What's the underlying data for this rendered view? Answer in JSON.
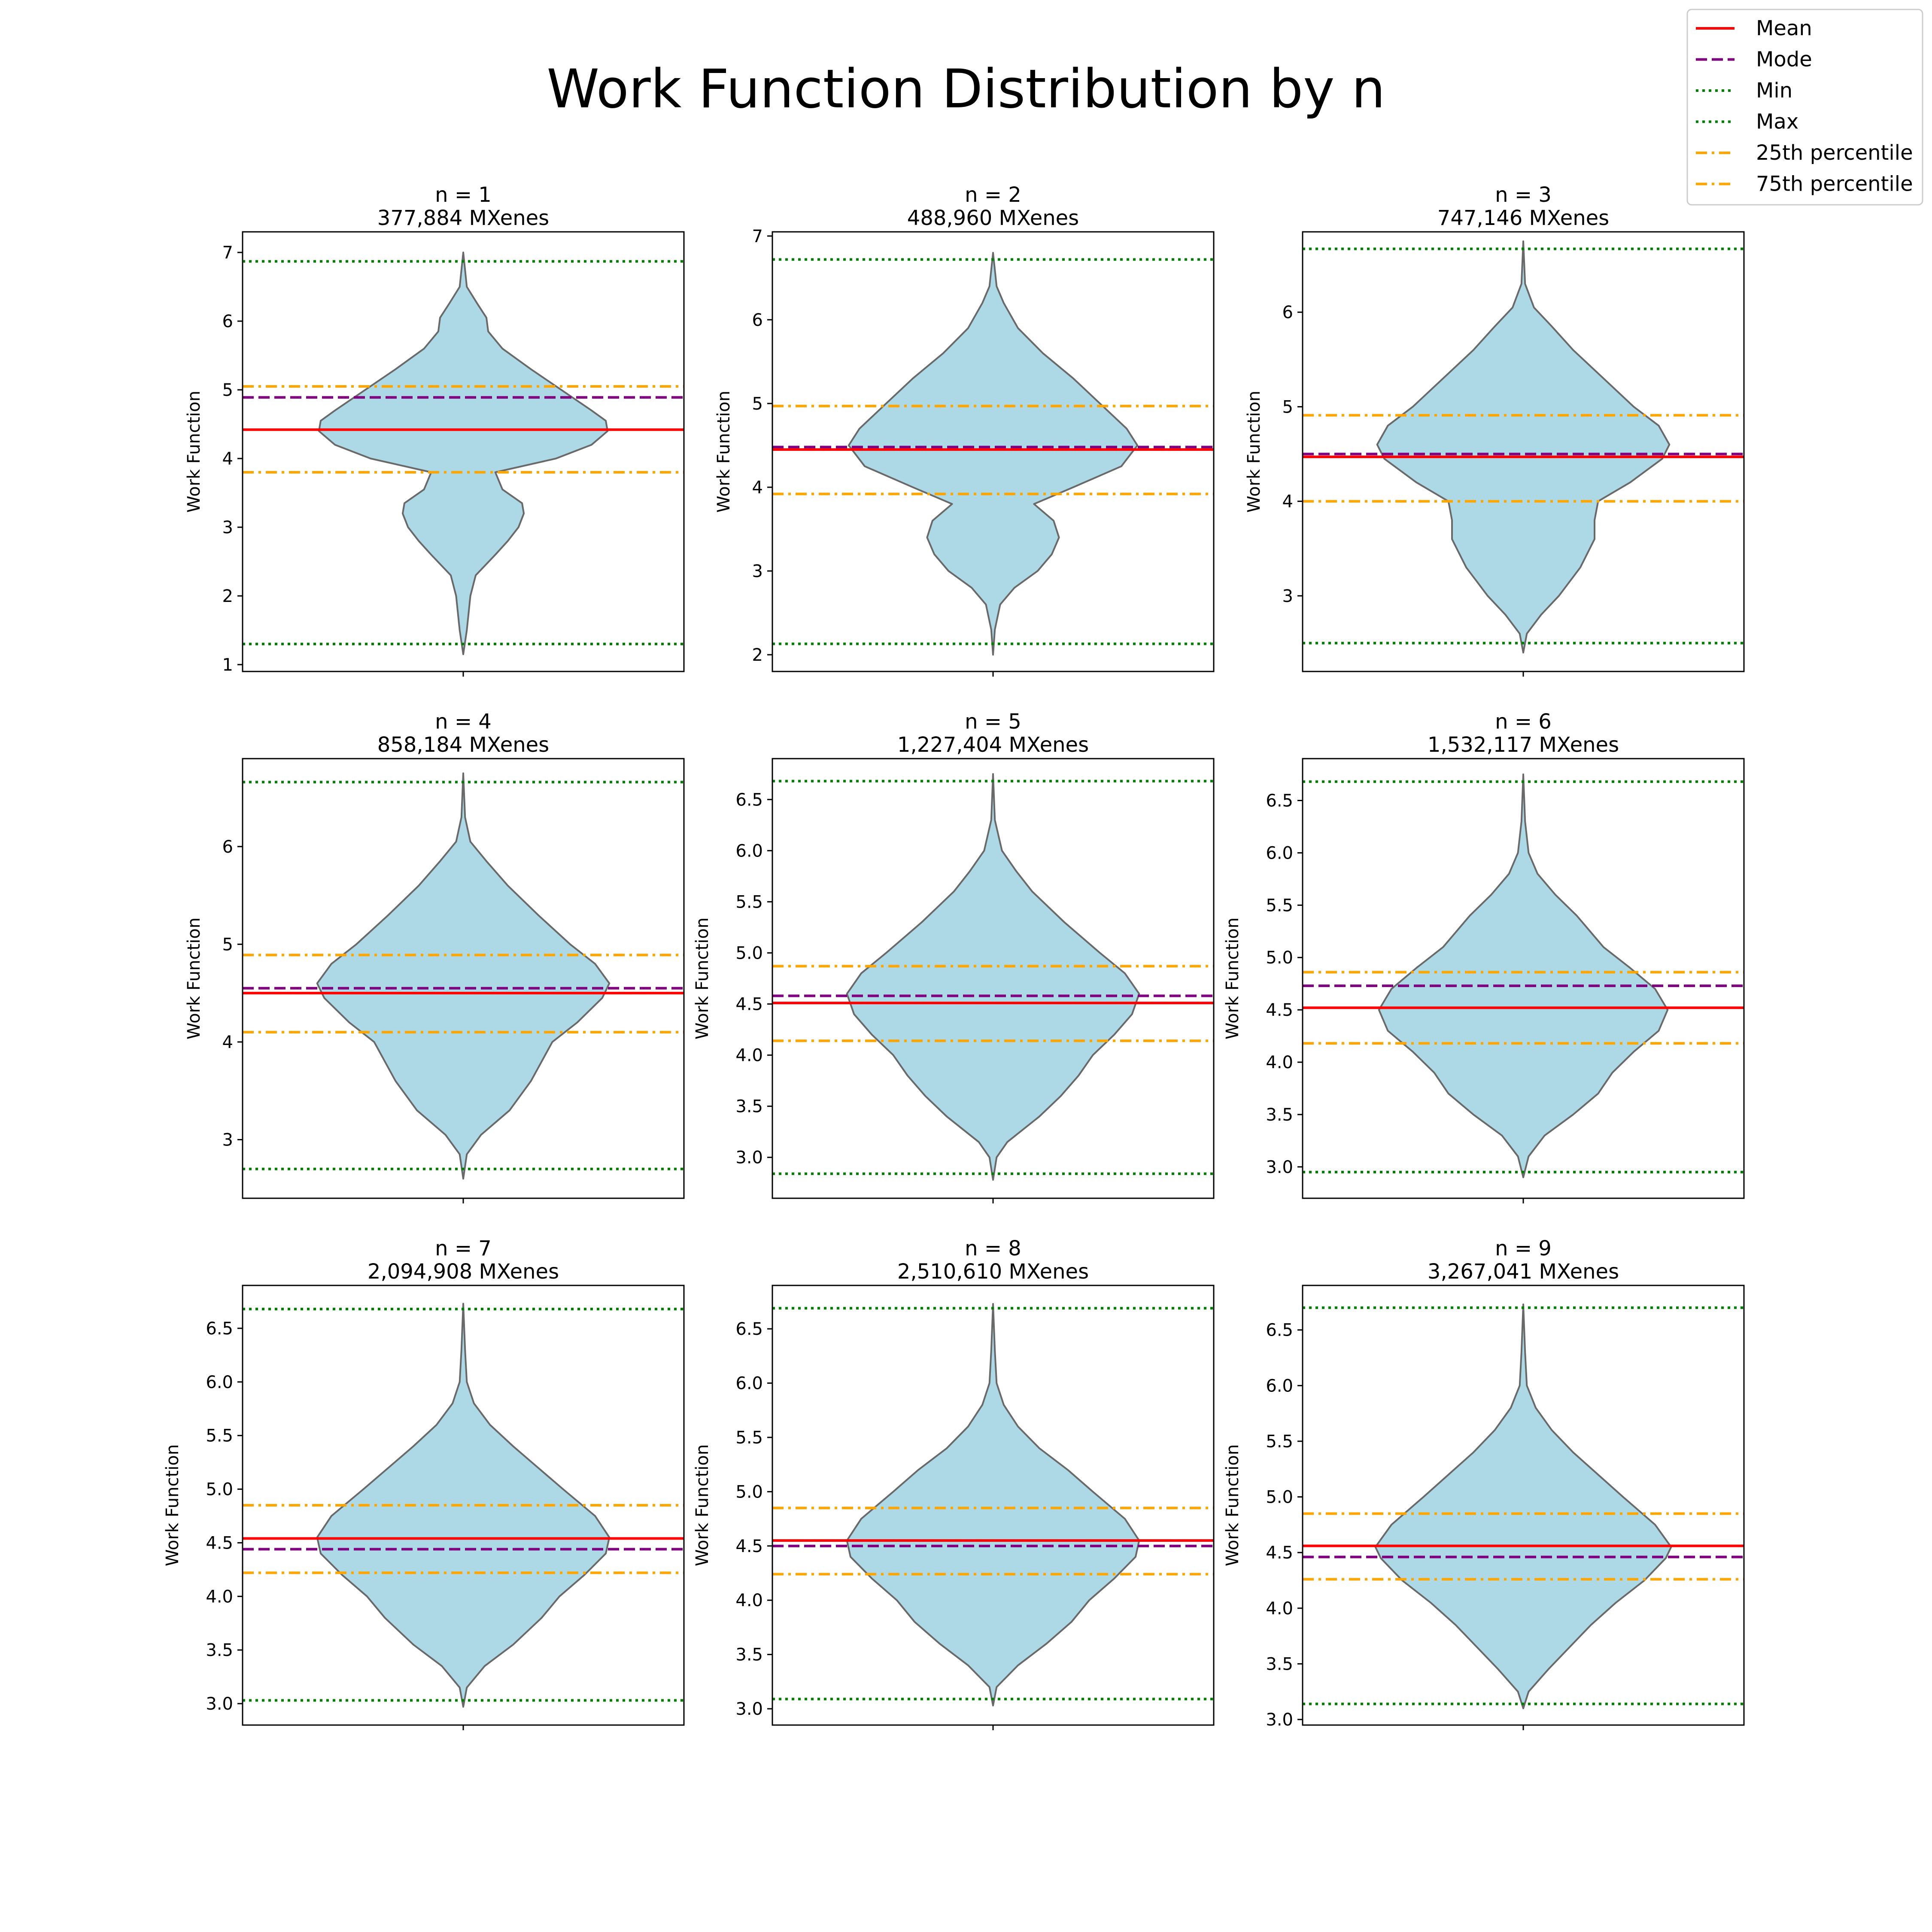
{
  "figure": {
    "title": "Work Function Distribution by n"
  },
  "legend": {
    "placement": "top-right",
    "entries": [
      {
        "label": "Mean",
        "color": "#ff0000",
        "style": "solid"
      },
      {
        "label": "Mode",
        "color": "#800080",
        "style": "dashed"
      },
      {
        "label": "Min",
        "color": "#008000",
        "style": "dotted"
      },
      {
        "label": "Max",
        "color": "#008000",
        "style": "dotted"
      },
      {
        "label": "25th percentile",
        "color": "#ffa500",
        "style": "dashdot"
      },
      {
        "label": "75th percentile",
        "color": "#ffa500",
        "style": "dashdot"
      }
    ]
  },
  "colors": {
    "violin_fill": "#add8e6",
    "violin_edge": "#696969",
    "mean": "#ff0000",
    "mode": "#800080",
    "minmax": "#008000",
    "percentile": "#ffa500"
  },
  "chart_data": [
    {
      "type": "violin",
      "title": "n = 1",
      "subtitle": "377,884 MXenes",
      "ylabel": "Work Function",
      "ylim": [
        0.9,
        7.3
      ],
      "yticks": [
        1,
        2,
        3,
        4,
        5,
        6,
        7
      ],
      "tick_labels": [
        "1",
        "2",
        "3",
        "4",
        "5",
        "6",
        "7"
      ],
      "stats": {
        "mean": 4.42,
        "mode": 4.89,
        "min": 1.3,
        "max": 6.87,
        "p25": 3.8,
        "p75": 5.05
      },
      "data_range": [
        1.15,
        7.0
      ],
      "density": [
        [
          1.15,
          0.0
        ],
        [
          1.5,
          0.02
        ],
        [
          2.0,
          0.04
        ],
        [
          2.3,
          0.07
        ],
        [
          2.6,
          0.18
        ],
        [
          2.8,
          0.25
        ],
        [
          3.0,
          0.31
        ],
        [
          3.2,
          0.34
        ],
        [
          3.35,
          0.33
        ],
        [
          3.55,
          0.22
        ],
        [
          3.8,
          0.18
        ],
        [
          4.0,
          0.52
        ],
        [
          4.2,
          0.72
        ],
        [
          4.4,
          0.81
        ],
        [
          4.55,
          0.8
        ],
        [
          4.7,
          0.72
        ],
        [
          5.0,
          0.55
        ],
        [
          5.3,
          0.38
        ],
        [
          5.6,
          0.22
        ],
        [
          5.85,
          0.14
        ],
        [
          6.05,
          0.13
        ],
        [
          6.25,
          0.08
        ],
        [
          6.5,
          0.02
        ],
        [
          7.0,
          0.0
        ]
      ]
    },
    {
      "type": "violin",
      "title": "n = 2",
      "subtitle": "488,960 MXenes",
      "ylabel": "Work Function",
      "ylim": [
        1.8,
        7.05
      ],
      "yticks": [
        2,
        3,
        4,
        5,
        6,
        7
      ],
      "tick_labels": [
        "2",
        "3",
        "4",
        "5",
        "6",
        "7"
      ],
      "stats": {
        "mean": 4.45,
        "mode": 4.48,
        "min": 2.13,
        "max": 6.72,
        "p25": 3.92,
        "p75": 4.97
      },
      "data_range": [
        2.0,
        6.8
      ],
      "density": [
        [
          2.0,
          0.0
        ],
        [
          2.3,
          0.01
        ],
        [
          2.6,
          0.04
        ],
        [
          2.8,
          0.12
        ],
        [
          3.0,
          0.25
        ],
        [
          3.2,
          0.33
        ],
        [
          3.4,
          0.37
        ],
        [
          3.6,
          0.34
        ],
        [
          3.8,
          0.23
        ],
        [
          4.0,
          0.45
        ],
        [
          4.25,
          0.72
        ],
        [
          4.5,
          0.81
        ],
        [
          4.7,
          0.75
        ],
        [
          5.0,
          0.6
        ],
        [
          5.3,
          0.45
        ],
        [
          5.6,
          0.28
        ],
        [
          5.9,
          0.14
        ],
        [
          6.2,
          0.06
        ],
        [
          6.4,
          0.02
        ],
        [
          6.8,
          0.0
        ]
      ]
    },
    {
      "type": "violin",
      "title": "n = 3",
      "subtitle": "747,146 MXenes",
      "ylabel": "Work Function",
      "ylim": [
        2.2,
        6.85
      ],
      "yticks": [
        3,
        4,
        5,
        6
      ],
      "tick_labels": [
        "3",
        "4",
        "5",
        "6"
      ],
      "stats": {
        "mean": 4.47,
        "mode": 4.5,
        "min": 2.5,
        "max": 6.67,
        "p25": 4.0,
        "p75": 4.91
      },
      "data_range": [
        2.4,
        6.75
      ],
      "density": [
        [
          2.4,
          0.0
        ],
        [
          2.6,
          0.02
        ],
        [
          2.8,
          0.1
        ],
        [
          3.0,
          0.2
        ],
        [
          3.3,
          0.32
        ],
        [
          3.6,
          0.4
        ],
        [
          3.8,
          0.4
        ],
        [
          4.0,
          0.42
        ],
        [
          4.2,
          0.6
        ],
        [
          4.45,
          0.78
        ],
        [
          4.6,
          0.82
        ],
        [
          4.8,
          0.76
        ],
        [
          5.0,
          0.62
        ],
        [
          5.3,
          0.45
        ],
        [
          5.6,
          0.28
        ],
        [
          5.85,
          0.16
        ],
        [
          6.05,
          0.06
        ],
        [
          6.3,
          0.01
        ],
        [
          6.75,
          0.0
        ]
      ]
    },
    {
      "type": "violin",
      "title": "n = 4",
      "subtitle": "858,184 MXenes",
      "ylabel": "Work Function",
      "ylim": [
        2.4,
        6.9
      ],
      "yticks": [
        3,
        4,
        5,
        6
      ],
      "tick_labels": [
        "3",
        "4",
        "5",
        "6"
      ],
      "stats": {
        "mean": 4.5,
        "mode": 4.55,
        "min": 2.7,
        "max": 6.66,
        "p25": 4.1,
        "p75": 4.89
      },
      "data_range": [
        2.6,
        6.75
      ],
      "density": [
        [
          2.6,
          0.0
        ],
        [
          2.85,
          0.02
        ],
        [
          3.05,
          0.1
        ],
        [
          3.3,
          0.26
        ],
        [
          3.6,
          0.38
        ],
        [
          3.8,
          0.44
        ],
        [
          4.0,
          0.5
        ],
        [
          4.2,
          0.64
        ],
        [
          4.45,
          0.78
        ],
        [
          4.6,
          0.82
        ],
        [
          4.8,
          0.74
        ],
        [
          5.0,
          0.6
        ],
        [
          5.3,
          0.42
        ],
        [
          5.6,
          0.25
        ],
        [
          5.85,
          0.13
        ],
        [
          6.05,
          0.04
        ],
        [
          6.3,
          0.01
        ],
        [
          6.75,
          0.0
        ]
      ]
    },
    {
      "type": "violin",
      "title": "n = 5",
      "subtitle": "1,227,404 MXenes",
      "ylabel": "Work Function",
      "ylim": [
        2.6,
        6.9
      ],
      "yticks": [
        3.0,
        3.5,
        4.0,
        4.5,
        5.0,
        5.5,
        6.0,
        6.5
      ],
      "tick_labels": [
        "3.0",
        "3.5",
        "4.0",
        "4.5",
        "5.0",
        "5.5",
        "6.0",
        "6.5"
      ],
      "stats": {
        "mean": 4.51,
        "mode": 4.58,
        "min": 2.84,
        "max": 6.68,
        "p25": 4.14,
        "p75": 4.87
      },
      "data_range": [
        2.78,
        6.75
      ],
      "density": [
        [
          2.78,
          0.0
        ],
        [
          3.0,
          0.02
        ],
        [
          3.15,
          0.08
        ],
        [
          3.4,
          0.26
        ],
        [
          3.6,
          0.38
        ],
        [
          3.8,
          0.48
        ],
        [
          4.0,
          0.56
        ],
        [
          4.2,
          0.68
        ],
        [
          4.4,
          0.78
        ],
        [
          4.6,
          0.82
        ],
        [
          4.8,
          0.74
        ],
        [
          5.0,
          0.6
        ],
        [
          5.3,
          0.4
        ],
        [
          5.6,
          0.22
        ],
        [
          5.8,
          0.13
        ],
        [
          6.0,
          0.05
        ],
        [
          6.3,
          0.01
        ],
        [
          6.75,
          0.0
        ]
      ]
    },
    {
      "type": "violin",
      "title": "n = 6",
      "subtitle": "1,532,117 MXenes",
      "ylabel": "Work Function",
      "ylim": [
        2.7,
        6.9
      ],
      "yticks": [
        3.0,
        3.5,
        4.0,
        4.5,
        5.0,
        5.5,
        6.0,
        6.5
      ],
      "tick_labels": [
        "3.0",
        "3.5",
        "4.0",
        "4.5",
        "5.0",
        "5.5",
        "6.0",
        "6.5"
      ],
      "stats": {
        "mean": 4.52,
        "mode": 4.73,
        "min": 2.95,
        "max": 6.68,
        "p25": 4.18,
        "p75": 4.86
      },
      "data_range": [
        2.9,
        6.75
      ],
      "density": [
        [
          2.9,
          0.0
        ],
        [
          3.1,
          0.03
        ],
        [
          3.3,
          0.12
        ],
        [
          3.5,
          0.28
        ],
        [
          3.7,
          0.42
        ],
        [
          3.9,
          0.5
        ],
        [
          4.1,
          0.62
        ],
        [
          4.3,
          0.76
        ],
        [
          4.5,
          0.81
        ],
        [
          4.7,
          0.74
        ],
        [
          4.9,
          0.6
        ],
        [
          5.1,
          0.45
        ],
        [
          5.4,
          0.3
        ],
        [
          5.6,
          0.18
        ],
        [
          5.8,
          0.08
        ],
        [
          6.0,
          0.03
        ],
        [
          6.3,
          0.01
        ],
        [
          6.75,
          0.0
        ]
      ]
    },
    {
      "type": "violin",
      "title": "n = 7",
      "subtitle": "2,094,908 MXenes",
      "ylabel": "Work Function",
      "ylim": [
        2.8,
        6.9
      ],
      "yticks": [
        3.0,
        3.5,
        4.0,
        4.5,
        5.0,
        5.5,
        6.0,
        6.5
      ],
      "tick_labels": [
        "3.0",
        "3.5",
        "4.0",
        "4.5",
        "5.0",
        "5.5",
        "6.0",
        "6.5"
      ],
      "stats": {
        "mean": 4.54,
        "mode": 4.44,
        "min": 3.03,
        "max": 6.68,
        "p25": 4.22,
        "p75": 4.85
      },
      "data_range": [
        2.97,
        6.73
      ],
      "density": [
        [
          2.97,
          0.0
        ],
        [
          3.15,
          0.02
        ],
        [
          3.35,
          0.12
        ],
        [
          3.55,
          0.28
        ],
        [
          3.8,
          0.44
        ],
        [
          4.0,
          0.54
        ],
        [
          4.2,
          0.68
        ],
        [
          4.4,
          0.8
        ],
        [
          4.55,
          0.82
        ],
        [
          4.75,
          0.74
        ],
        [
          5.0,
          0.56
        ],
        [
          5.2,
          0.42
        ],
        [
          5.4,
          0.28
        ],
        [
          5.6,
          0.15
        ],
        [
          5.8,
          0.06
        ],
        [
          6.0,
          0.02
        ],
        [
          6.3,
          0.01
        ],
        [
          6.73,
          0.0
        ]
      ]
    },
    {
      "type": "violin",
      "title": "n = 8",
      "subtitle": "2,510,610 MXenes",
      "ylabel": "Work Function",
      "ylim": [
        2.85,
        6.9
      ],
      "yticks": [
        3.0,
        3.5,
        4.0,
        4.5,
        5.0,
        5.5,
        6.0,
        6.5
      ],
      "tick_labels": [
        "3.0",
        "3.5",
        "4.0",
        "4.5",
        "5.0",
        "5.5",
        "6.0",
        "6.5"
      ],
      "stats": {
        "mean": 4.55,
        "mode": 4.5,
        "min": 3.09,
        "max": 6.69,
        "p25": 4.24,
        "p75": 4.85
      },
      "data_range": [
        3.03,
        6.73
      ],
      "density": [
        [
          3.03,
          0.0
        ],
        [
          3.2,
          0.02
        ],
        [
          3.4,
          0.14
        ],
        [
          3.6,
          0.3
        ],
        [
          3.8,
          0.44
        ],
        [
          4.0,
          0.54
        ],
        [
          4.2,
          0.68
        ],
        [
          4.4,
          0.8
        ],
        [
          4.55,
          0.82
        ],
        [
          4.75,
          0.74
        ],
        [
          5.0,
          0.56
        ],
        [
          5.2,
          0.42
        ],
        [
          5.4,
          0.26
        ],
        [
          5.6,
          0.14
        ],
        [
          5.8,
          0.06
        ],
        [
          6.0,
          0.02
        ],
        [
          6.3,
          0.01
        ],
        [
          6.73,
          0.0
        ]
      ]
    },
    {
      "type": "violin",
      "title": "n = 9",
      "subtitle": "3,267,041 MXenes",
      "ylabel": "Work Function",
      "ylim": [
        2.95,
        6.9
      ],
      "yticks": [
        3.0,
        3.5,
        4.0,
        4.5,
        5.0,
        5.5,
        6.0,
        6.5
      ],
      "tick_labels": [
        "3.0",
        "3.5",
        "4.0",
        "4.5",
        "5.0",
        "5.5",
        "6.0",
        "6.5"
      ],
      "stats": {
        "mean": 4.56,
        "mode": 4.46,
        "min": 3.14,
        "max": 6.7,
        "p25": 4.26,
        "p75": 4.85
      },
      "data_range": [
        3.1,
        6.73
      ],
      "density": [
        [
          3.1,
          0.0
        ],
        [
          3.25,
          0.03
        ],
        [
          3.45,
          0.14
        ],
        [
          3.65,
          0.26
        ],
        [
          3.85,
          0.38
        ],
        [
          4.05,
          0.52
        ],
        [
          4.25,
          0.68
        ],
        [
          4.45,
          0.8
        ],
        [
          4.55,
          0.83
        ],
        [
          4.75,
          0.74
        ],
        [
          5.0,
          0.56
        ],
        [
          5.2,
          0.42
        ],
        [
          5.4,
          0.28
        ],
        [
          5.6,
          0.16
        ],
        [
          5.8,
          0.07
        ],
        [
          6.0,
          0.02
        ],
        [
          6.3,
          0.01
        ],
        [
          6.73,
          0.0
        ]
      ]
    }
  ]
}
